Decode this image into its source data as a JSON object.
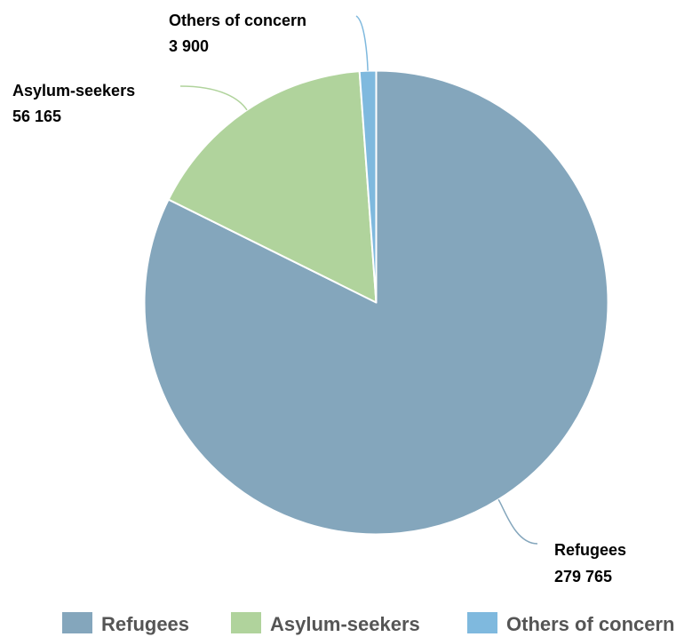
{
  "chart_data": {
    "type": "pie",
    "title": "",
    "slices": [
      {
        "name": "Refugees",
        "value": 279765,
        "value_label": "279 765",
        "color": "#84a6bc"
      },
      {
        "name": "Asylum-seekers",
        "value": 56165,
        "value_label": "56 165",
        "color": "#b0d39c"
      },
      {
        "name": "Others of concern",
        "value": 3900,
        "value_label": "3 900",
        "color": "#7fb9de"
      }
    ],
    "legend": {
      "position": "bottom",
      "entries": [
        "Refugees",
        "Asylum-seekers",
        "Others of concern"
      ]
    }
  }
}
